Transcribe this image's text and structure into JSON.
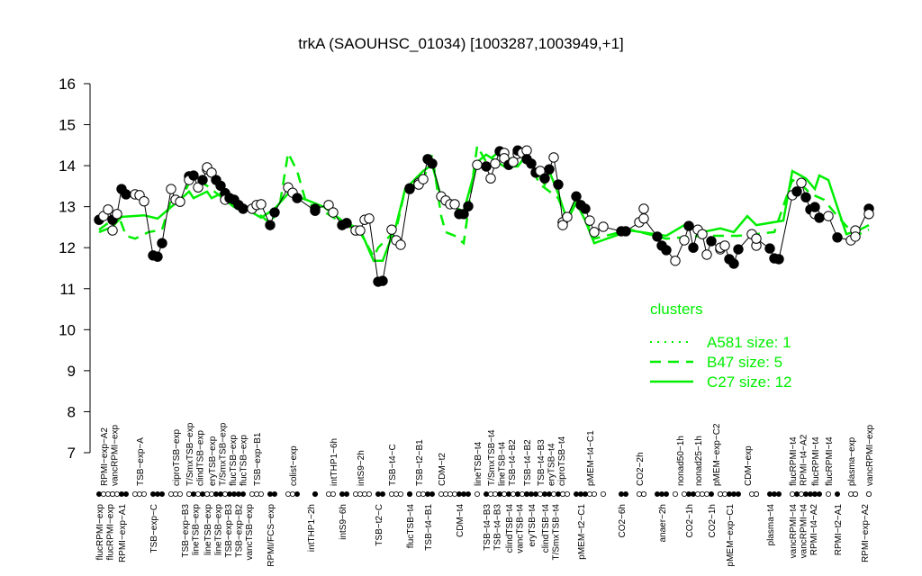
{
  "chart_data": {
    "type": "scatter",
    "title": "trkA (SAOUHSC_01034) [1003287,1003949,+1]",
    "xlabel": "",
    "ylabel": "",
    "ylim": [
      7,
      16
    ],
    "yticks": [
      7,
      8,
      9,
      10,
      11,
      12,
      13,
      14,
      15,
      16
    ],
    "grid": false,
    "colors": {
      "points": "#000000",
      "clusters": "#00ee00"
    },
    "points": [
      [
        0,
        12.68,
        1
      ],
      [
        1,
        12.77,
        0
      ],
      [
        2,
        12.93,
        0
      ],
      [
        3,
        12.68,
        1
      ],
      [
        3,
        12.42,
        0
      ],
      [
        4,
        12.82,
        0
      ],
      [
        5,
        13.43,
        1
      ],
      [
        6,
        13.3,
        1
      ],
      [
        8,
        13.3,
        0
      ],
      [
        9,
        13.28,
        0
      ],
      [
        10,
        13.13,
        0
      ],
      [
        12,
        11.81,
        1
      ],
      [
        13,
        11.78,
        1
      ],
      [
        14,
        12.11,
        1
      ],
      [
        16,
        13.43,
        0
      ],
      [
        17,
        13.17,
        0
      ],
      [
        18,
        13.12,
        0
      ],
      [
        20,
        13.74,
        1
      ],
      [
        20,
        13.65,
        0
      ],
      [
        21,
        13.76,
        1
      ],
      [
        22,
        13.47,
        0
      ],
      [
        23,
        13.65,
        1
      ],
      [
        24,
        13.91,
        0
      ],
      [
        24,
        13.96,
        0
      ],
      [
        25,
        13.83,
        0
      ],
      [
        26,
        13.65,
        1
      ],
      [
        27,
        13.51,
        1
      ],
      [
        28,
        13.33,
        1
      ],
      [
        28,
        13.17,
        0
      ],
      [
        29,
        13.21,
        1
      ],
      [
        30,
        13.17,
        1
      ],
      [
        31,
        13.04,
        1
      ],
      [
        32,
        12.95,
        1
      ],
      [
        34,
        12.95,
        0
      ],
      [
        35,
        13.04,
        0
      ],
      [
        36,
        13.06,
        0
      ],
      [
        38,
        12.55,
        1
      ],
      [
        39,
        12.86,
        1
      ],
      [
        42,
        13.47,
        0
      ],
      [
        43,
        13.34,
        0
      ],
      [
        44,
        13.21,
        1
      ],
      [
        48,
        12.9,
        1
      ],
      [
        48,
        12.95,
        1
      ],
      [
        51,
        13.04,
        0
      ],
      [
        52,
        12.86,
        0
      ],
      [
        54,
        12.55,
        1
      ],
      [
        55,
        12.6,
        1
      ],
      [
        57,
        12.42,
        0
      ],
      [
        58,
        12.42,
        0
      ],
      [
        59,
        12.68,
        0
      ],
      [
        60,
        12.71,
        0
      ],
      [
        62,
        11.17,
        1
      ],
      [
        63,
        11.19,
        1
      ],
      [
        65,
        12.44,
        0
      ],
      [
        66,
        12.18,
        0
      ],
      [
        67,
        12.07,
        0
      ],
      [
        69,
        13.43,
        1
      ],
      [
        69,
        13.45,
        1
      ],
      [
        71,
        13.58,
        0
      ],
      [
        71,
        13.54,
        0
      ],
      [
        72,
        13.67,
        0
      ],
      [
        73,
        14.16,
        1
      ],
      [
        74,
        14.05,
        1
      ],
      [
        76,
        13.25,
        0
      ],
      [
        77,
        13.15,
        0
      ],
      [
        78,
        13.06,
        0
      ],
      [
        79,
        13.06,
        0
      ],
      [
        80,
        12.82,
        1
      ],
      [
        81,
        12.82,
        1
      ],
      [
        82,
        13.01,
        1
      ],
      [
        84,
        14.02,
        0
      ],
      [
        86,
        13.98,
        1
      ],
      [
        87,
        13.69,
        0
      ],
      [
        88,
        14.05,
        0
      ],
      [
        89,
        14.35,
        1
      ],
      [
        90,
        14.31,
        0
      ],
      [
        90,
        14.18,
        0
      ],
      [
        91,
        14.02,
        1
      ],
      [
        92,
        14.09,
        0
      ],
      [
        93,
        14.29,
        0
      ],
      [
        93,
        14.37,
        1
      ],
      [
        94,
        14.31,
        0
      ],
      [
        95,
        14.37,
        0
      ],
      [
        95,
        14.16,
        1
      ],
      [
        96,
        14.05,
        1
      ],
      [
        97,
        13.83,
        1
      ],
      [
        98,
        13.87,
        0
      ],
      [
        99,
        13.69,
        1
      ],
      [
        100,
        13.91,
        1
      ],
      [
        101,
        14.2,
        0
      ],
      [
        102,
        13.54,
        1
      ],
      [
        103,
        12.62,
        0
      ],
      [
        103,
        12.55,
        0
      ],
      [
        104,
        12.75,
        0
      ],
      [
        106,
        13.25,
        1
      ],
      [
        107,
        13.04,
        1
      ],
      [
        108,
        12.95,
        1
      ],
      [
        109,
        12.66,
        0
      ],
      [
        110,
        12.38,
        0
      ],
      [
        112,
        12.51,
        0
      ],
      [
        116,
        12.4,
        1
      ],
      [
        117,
        12.4,
        1
      ],
      [
        120,
        12.62,
        0
      ],
      [
        121,
        12.95,
        0
      ],
      [
        121,
        12.71,
        0
      ],
      [
        124,
        12.27,
        1
      ],
      [
        125,
        12.05,
        1
      ],
      [
        126,
        11.94,
        1
      ],
      [
        128,
        11.68,
        0
      ],
      [
        130,
        12.18,
        0
      ],
      [
        131,
        12.53,
        1
      ],
      [
        132,
        12.0,
        1
      ],
      [
        133,
        12.44,
        0
      ],
      [
        134,
        12.33,
        0
      ],
      [
        135,
        11.83,
        0
      ],
      [
        136,
        12.16,
        1
      ],
      [
        138,
        11.96,
        0
      ],
      [
        138,
        12.0,
        0
      ],
      [
        139,
        12.05,
        0
      ],
      [
        140,
        11.72,
        1
      ],
      [
        141,
        11.61,
        1
      ],
      [
        142,
        11.96,
        1
      ],
      [
        145,
        12.33,
        0
      ],
      [
        146,
        12.05,
        0
      ],
      [
        146,
        12.22,
        0
      ],
      [
        149,
        11.98,
        1
      ],
      [
        150,
        11.74,
        1
      ],
      [
        151,
        11.72,
        1
      ],
      [
        154,
        13.28,
        0
      ],
      [
        155,
        13.37,
        1
      ],
      [
        156,
        13.58,
        0
      ],
      [
        157,
        13.23,
        1
      ],
      [
        158,
        12.93,
        1
      ],
      [
        159,
        12.82,
        0
      ],
      [
        159,
        12.99,
        1
      ],
      [
        160,
        12.73,
        1
      ],
      [
        162,
        12.77,
        0
      ],
      [
        164,
        12.25,
        1
      ],
      [
        167,
        12.18,
        0
      ],
      [
        168,
        12.42,
        0
      ],
      [
        168,
        12.27,
        0
      ],
      [
        171,
        12.95,
        1
      ],
      [
        171,
        12.82,
        0
      ]
    ],
    "series": [
      {
        "name": "C27 size: 12",
        "style": "solid",
        "values": [
          [
            0,
            12.38
          ],
          [
            3,
            12.51
          ],
          [
            5,
            12.75
          ],
          [
            10,
            12.79
          ],
          [
            13,
            12.71
          ],
          [
            16,
            12.99
          ],
          [
            18,
            13.17
          ],
          [
            20,
            13.37
          ],
          [
            21,
            13.21
          ],
          [
            24,
            13.37
          ],
          [
            25,
            13.21
          ],
          [
            28,
            13.37
          ],
          [
            32,
            12.99
          ],
          [
            36,
            12.73
          ],
          [
            39,
            12.95
          ],
          [
            42,
            13.32
          ],
          [
            46,
            13.17
          ],
          [
            50,
            12.99
          ],
          [
            54,
            12.66
          ],
          [
            58,
            12.44
          ],
          [
            61,
            11.68
          ],
          [
            63,
            11.68
          ],
          [
            66,
            12.55
          ],
          [
            68,
            13.43
          ],
          [
            72,
            13.87
          ],
          [
            74,
            14.02
          ],
          [
            76,
            13.21
          ],
          [
            79,
            12.99
          ],
          [
            81,
            12.88
          ],
          [
            84,
            14.09
          ],
          [
            86,
            14.27
          ],
          [
            90,
            13.98
          ],
          [
            93,
            13.98
          ],
          [
            95,
            14.27
          ],
          [
            97,
            13.87
          ],
          [
            99,
            13.54
          ],
          [
            100,
            13.87
          ],
          [
            102,
            13.32
          ],
          [
            104,
            12.66
          ],
          [
            106,
            13.1
          ],
          [
            108,
            12.66
          ],
          [
            110,
            12.11
          ],
          [
            118,
            12.42
          ],
          [
            126,
            12.29
          ],
          [
            130,
            12.55
          ],
          [
            134,
            12.38
          ],
          [
            138,
            12.47
          ],
          [
            141,
            12.38
          ],
          [
            144,
            12.77
          ],
          [
            146,
            12.55
          ],
          [
            152,
            12.66
          ],
          [
            154,
            13.87
          ],
          [
            157,
            13.69
          ],
          [
            159,
            13.43
          ],
          [
            160,
            13.76
          ],
          [
            162,
            13.65
          ],
          [
            166,
            12.33
          ],
          [
            169,
            12.44
          ],
          [
            171,
            12.55
          ]
        ]
      },
      {
        "name": "B47 size: 5",
        "style": "dashed",
        "values": [
          [
            0,
            12.44
          ],
          [
            2,
            12.6
          ],
          [
            4,
            12.88
          ],
          [
            6,
            12.29
          ],
          [
            8,
            12.22
          ],
          [
            11,
            12.38
          ],
          [
            14,
            12.44
          ],
          [
            16,
            13.17
          ],
          [
            18,
            13.12
          ],
          [
            20,
            13.58
          ],
          [
            22,
            13.65
          ],
          [
            24,
            13.51
          ],
          [
            27,
            13.25
          ],
          [
            30,
            12.99
          ],
          [
            34,
            12.95
          ],
          [
            38,
            12.6
          ],
          [
            40,
            12.95
          ],
          [
            42,
            14.31
          ],
          [
            44,
            13.87
          ],
          [
            46,
            13.1
          ],
          [
            50,
            12.88
          ],
          [
            54,
            12.6
          ],
          [
            58,
            12.38
          ],
          [
            61,
            11.78
          ],
          [
            62,
            12.0
          ],
          [
            66,
            12.44
          ],
          [
            68,
            13.43
          ],
          [
            72,
            13.65
          ],
          [
            74,
            14.27
          ],
          [
            76,
            12.77
          ],
          [
            77,
            12.38
          ],
          [
            79,
            12.29
          ],
          [
            81,
            12.11
          ],
          [
            84,
            14.48
          ],
          [
            86,
            14.09
          ],
          [
            89,
            14.35
          ],
          [
            92,
            14.09
          ],
          [
            95,
            14.13
          ],
          [
            98,
            13.54
          ],
          [
            102,
            13.21
          ],
          [
            104,
            12.66
          ],
          [
            106,
            13.21
          ],
          [
            110,
            12.22
          ],
          [
            118,
            12.44
          ],
          [
            126,
            12.22
          ],
          [
            134,
            12.29
          ],
          [
            142,
            12.29
          ],
          [
            150,
            12.38
          ],
          [
            154,
            13.65
          ],
          [
            156,
            13.54
          ],
          [
            158,
            13.32
          ],
          [
            161,
            13.17
          ],
          [
            164,
            12.77
          ],
          [
            168,
            12.29
          ],
          [
            171,
            12.44
          ]
        ]
      },
      {
        "name": "A581 size: 1",
        "style": "dotted",
        "values": []
      }
    ],
    "legend": {
      "title": "clusters",
      "placement": "right",
      "entries": [
        "A581 size: 1",
        "B47 size: 5",
        "C27 size: 12"
      ]
    },
    "xticks_top": [
      [
        "RPMI−exp−A2",
        1
      ],
      [
        "vancRPMI−exp",
        3
      ],
      [
        "TSB−exp−A",
        9
      ],
      [
        "ciproTSB−exp",
        17
      ],
      [
        "T/SmxTSB−exp",
        20
      ],
      [
        "clindTSB−exp",
        22
      ],
      [
        "eryTSB−exp",
        25
      ],
      [
        "T/SmxTSB−exp",
        27
      ],
      [
        "flucTSB−exp",
        29
      ],
      [
        "flucTSB−exp",
        31
      ],
      [
        "TSB−exp−B1",
        35
      ],
      [
        "colist−exp",
        43
      ],
      [
        "intTHP1−6h",
        52
      ],
      [
        "intS9−2h",
        58
      ],
      [
        "TSB−t4−C",
        65
      ],
      [
        "TSB−t2−B1",
        71
      ],
      [
        "CDM−t2",
        76
      ],
      [
        "lineTSB−t4",
        84
      ],
      [
        "T/SmxTSB−t4",
        87
      ],
      [
        "lineTSB−t4",
        89
      ],
      [
        "TSB−t4−B2",
        91
      ],
      [
        "TSB−t4−B2",
        95
      ],
      [
        "TSB−t4−B3",
        98
      ],
      [
        "eryTSB−t4",
        100
      ],
      [
        "ciproTSB−t4",
        102
      ],
      [
        "pMEM−t4−C1",
        109
      ],
      [
        "CO2−2h",
        120
      ],
      [
        "nonad50−1h",
        129
      ],
      [
        "nonad25−1h",
        133
      ],
      [
        "pMEM−exp−C2",
        137
      ],
      [
        "CDM−exp",
        144
      ],
      [
        "flucRPMI−t4",
        154
      ],
      [
        "RPMI−t4−A2",
        155
      ],
      [
        "flucRPMI−t4",
        159
      ],
      [
        "flucRPMI−t4",
        162
      ],
      [
        "plasma−exp",
        167
      ],
      [
        "vancRPMI−exp",
        171
      ]
    ],
    "xticks_bottom": [
      [
        "flucRPMI−exp",
        0
      ],
      [
        "flucRPMI−exp",
        2
      ],
      [
        "RPMI−exp−A1",
        5
      ],
      [
        "TSB−exp−C",
        12
      ],
      [
        "TSB−exp−B3",
        19
      ],
      [
        "lineTSB−exp",
        21
      ],
      [
        "lineTSB−exp",
        24
      ],
      [
        "lineTSB−exp",
        26
      ],
      [
        "TSB−exp−B3",
        27
      ],
      [
        "TSB−exp−B2",
        29
      ],
      [
        "vancTSB−exp",
        32
      ],
      [
        "RPMI/FCS−exp",
        38
      ],
      [
        "intTHP1−2h",
        47
      ],
      [
        "intS9−6h",
        54
      ],
      [
        "TSB−t2−C",
        62
      ],
      [
        "flucTSB−t4",
        69
      ],
      [
        "TSB−t4−B1",
        73
      ],
      [
        "CDM−t4",
        80
      ],
      [
        "TSB−t4−B3",
        86
      ],
      [
        "TSB−t4−B3",
        88
      ],
      [
        "clindTSB−t4",
        91
      ],
      [
        "vancTSB−t4",
        93
      ],
      [
        "eryTSB−t4",
        96
      ],
      [
        "clindTSB−t4",
        99
      ],
      [
        "T/SmxTSB−t4",
        101
      ],
      [
        "pMEM−t2−C1",
        107
      ],
      [
        "CO2−6h",
        116
      ],
      [
        "anaer−2h",
        125
      ],
      [
        "CO2−1h",
        131
      ],
      [
        "CO2−1h",
        136
      ],
      [
        "pMEM−exp−C1",
        140
      ],
      [
        "plasma−t4",
        149
      ],
      [
        "vancRPMI−t4",
        154
      ],
      [
        "vancRPMI−t4",
        156
      ],
      [
        "RPMI−t4−A2",
        158
      ],
      [
        "RPMI−t2−A1",
        164
      ],
      [
        "RPMI−exp−A2",
        170
      ]
    ]
  }
}
